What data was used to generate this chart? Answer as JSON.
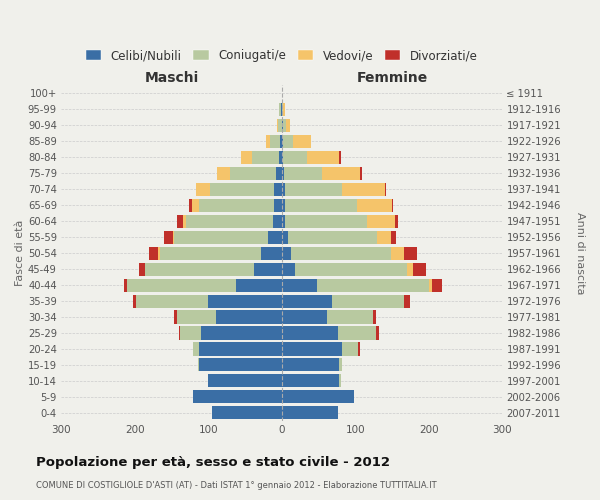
{
  "age_groups": [
    "0-4",
    "5-9",
    "10-14",
    "15-19",
    "20-24",
    "25-29",
    "30-34",
    "35-39",
    "40-44",
    "45-49",
    "50-54",
    "55-59",
    "60-64",
    "65-69",
    "70-74",
    "75-79",
    "80-84",
    "85-89",
    "90-94",
    "95-99",
    "100+"
  ],
  "birth_years": [
    "2007-2011",
    "2002-2006",
    "1997-2001",
    "1992-1996",
    "1987-1991",
    "1982-1986",
    "1977-1981",
    "1972-1976",
    "1967-1971",
    "1962-1966",
    "1957-1961",
    "1952-1956",
    "1947-1951",
    "1942-1946",
    "1937-1941",
    "1932-1936",
    "1927-1931",
    "1922-1926",
    "1917-1921",
    "1912-1916",
    "≤ 1911"
  ],
  "males": {
    "celibi": [
      95,
      120,
      100,
      112,
      112,
      110,
      90,
      100,
      62,
      38,
      28,
      18,
      12,
      10,
      10,
      8,
      3,
      2,
      0,
      1,
      0
    ],
    "coniugati": [
      0,
      0,
      0,
      2,
      8,
      28,
      52,
      98,
      148,
      148,
      138,
      128,
      118,
      103,
      88,
      62,
      38,
      14,
      5,
      2,
      0
    ],
    "vedovi": [
      0,
      0,
      0,
      0,
      0,
      0,
      0,
      0,
      0,
      0,
      2,
      2,
      4,
      9,
      18,
      18,
      14,
      5,
      2,
      0,
      0
    ],
    "divorziati": [
      0,
      0,
      0,
      0,
      0,
      2,
      4,
      4,
      4,
      8,
      12,
      12,
      8,
      4,
      0,
      0,
      0,
      0,
      0,
      0,
      0
    ]
  },
  "females": {
    "nubili": [
      76,
      98,
      78,
      78,
      82,
      76,
      62,
      68,
      48,
      18,
      12,
      8,
      4,
      4,
      4,
      3,
      2,
      2,
      2,
      0,
      0
    ],
    "coniugate": [
      0,
      0,
      2,
      4,
      22,
      52,
      62,
      98,
      152,
      152,
      136,
      122,
      112,
      98,
      78,
      52,
      32,
      14,
      4,
      2,
      0
    ],
    "vedove": [
      0,
      0,
      0,
      0,
      0,
      0,
      0,
      0,
      4,
      8,
      18,
      18,
      38,
      48,
      58,
      52,
      44,
      24,
      5,
      2,
      0
    ],
    "divorziate": [
      0,
      0,
      0,
      0,
      2,
      4,
      4,
      8,
      14,
      18,
      18,
      8,
      4,
      2,
      2,
      2,
      2,
      0,
      0,
      0,
      0
    ]
  },
  "colors": {
    "celibi_nubili": "#3a6ea5",
    "coniugati": "#b8c9a0",
    "vedovi": "#f5c46a",
    "divorziati": "#c0302a"
  },
  "xlim": 300,
  "title": "Popolazione per età, sesso e stato civile - 2012",
  "subtitle": "COMUNE DI COSTIGLIOLE D'ASTI (AT) - Dati ISTAT 1° gennaio 2012 - Elaborazione TUTTITALIA.IT",
  "legend_labels": [
    "Celibi/Nubili",
    "Coniugati/e",
    "Vedovi/e",
    "Divorziati/e"
  ],
  "xlabel_left": "Maschi",
  "xlabel_right": "Femmine",
  "ylabel_left": "Fasce di età",
  "ylabel_right": "Anni di nascita",
  "bg_color": "#f0f0eb"
}
